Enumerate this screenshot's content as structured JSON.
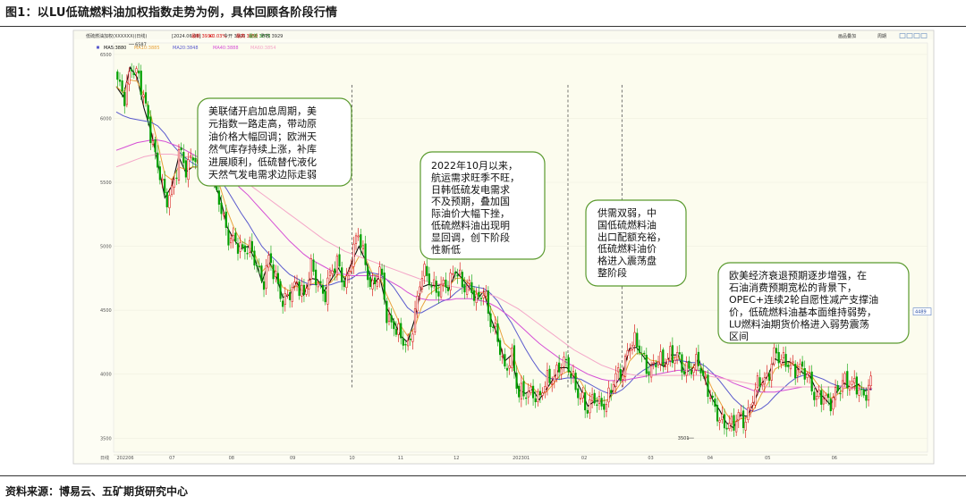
{
  "figure": {
    "caption": "图1：以LU低硫燃料油加权指数走势为例，具体回顾各阶段行情",
    "source": "资料来源：博易云、五矿期货研究中心"
  },
  "chart_toolbar": {
    "instrument": "低硫燃油加权(XXXXXX)(日线)",
    "info_items": [
      {
        "label": "[2024.06.06]",
        "color": "#333333"
      },
      {
        "label": "最新 3930",
        "color": "#d40000"
      },
      {
        "label": "+0.03%",
        "color": "#d40000"
      },
      {
        "label": "今开 3900",
        "color": "#333333"
      },
      {
        "label": "最高 3950",
        "color": "#d40000"
      },
      {
        "label": "最低 3875",
        "color": "#008800"
      },
      {
        "label": "昨收 3929",
        "color": "#333333"
      }
    ],
    "right_buttons": [
      "画品叠加",
      "周期"
    ]
  },
  "ma_legend": [
    {
      "label": "MA5:3880",
      "color": "#111111"
    },
    {
      "label": "MA10:3885",
      "color": "#e8a23c"
    },
    {
      "label": "MA20:3848",
      "color": "#5a5acd"
    },
    {
      "label": "MA40:3888",
      "color": "#d54fd5"
    },
    {
      "label": "MA60:3854",
      "color": "#f4a6c8"
    }
  ],
  "annotations": [
    {
      "id": "a1",
      "lines": [
        "美联储开启加息周期，美",
        "元指数一路走高，带动原",
        "油价格大幅回调；欧洲天",
        "然气库存持续上涨，补库",
        "进展顺利，低硫替代液化",
        "天然气发电需求边际走弱"
      ]
    },
    {
      "id": "a2",
      "lines": [
        "2022年10月以来，",
        "航运需求旺季不旺，",
        "日韩低硫发电需求",
        "不及预期，叠加国",
        "际油价大幅下挫，",
        "低硫燃料油出现明",
        "显回调，创下阶段",
        "性新低"
      ]
    },
    {
      "id": "a3",
      "lines": [
        "供需双弱，中",
        "国低硫燃料油",
        "出口配额充裕，",
        "低硫燃料油价",
        "格进入震荡盘",
        "整阶段"
      ]
    },
    {
      "id": "a4",
      "lines": [
        "欧美经济衰退预期逐步增强，在",
        "石油消费预期宽松的背景下，",
        "OPEC+连续2轮自愿性减产支撑油",
        "价，低硫燃料油基本面维持弱势，",
        "LU燃料油期货价格进入弱势震荡",
        "区间"
      ]
    }
  ],
  "chart_data": {
    "type": "candlestick",
    "period": "日线",
    "y_ticks": [
      3500,
      4000,
      4500,
      5000,
      5500,
      6000,
      6500
    ],
    "ylim": [
      3390,
      6590
    ],
    "x_ticks": [
      "日线",
      "202206",
      "07",
      "08",
      "09",
      "10",
      "11",
      "12",
      "202301",
      "02",
      "03",
      "04",
      "05",
      "06"
    ],
    "x_tick_bars": [
      0,
      10,
      62,
      128,
      196,
      262,
      316,
      378,
      450,
      520,
      594,
      660,
      724,
      798
    ],
    "price_labels": {
      "high": "6587",
      "low": "3501",
      "right": "4489"
    },
    "high_point": {
      "bar": 12,
      "value": 6587
    },
    "low_point": {
      "bar": 636,
      "value": 3501
    },
    "right_marker_value": 4489,
    "period_dividers_at_bar": [
      262,
      502,
      562
    ],
    "up_color": "#d40000",
    "down_color": "#00a000",
    "closes_weekly": [
      6250,
      6150,
      6450,
      6320,
      6080,
      5850,
      5620,
      5300,
      5450,
      5800,
      5560,
      5700,
      5620,
      5820,
      5430,
      5320,
      5100,
      5000,
      4950,
      5050,
      4870,
      4650,
      4960,
      4750,
      4500,
      4650,
      4760,
      4580,
      4820,
      4750,
      4620,
      4780,
      4880,
      4700,
      4920,
      5100,
      4850,
      4650,
      4800,
      4470,
      4400,
      4250,
      4200,
      4490,
      4780,
      4720,
      4690,
      4700,
      4660,
      4850,
      4720,
      4650,
      4550,
      4700,
      4400,
      4250,
      4050,
      4180,
      3800,
      3850,
      3900,
      3780,
      3920,
      4000,
      4080,
      4050,
      3950,
      3850,
      3700,
      3800,
      3790,
      3800,
      3950,
      4020,
      4250,
      4220,
      4120,
      4050,
      4100,
      4050,
      4180,
      4160,
      3980,
      4050,
      4150,
      3900,
      3770,
      3700,
      3600,
      3560,
      3700,
      3660,
      3800,
      3950,
      4000,
      4150,
      4080,
      4120,
      4050,
      4000,
      3980,
      3850,
      3800,
      3740,
      3900,
      3950,
      3880,
      3930,
      3850,
      3900
    ],
    "series": [
      {
        "name": "MA5",
        "color": "#111111",
        "width": 1.1,
        "values": [
          6250,
          6170,
          6400,
          6320,
          6080,
          5900,
          5650,
          5380,
          5470,
          5700,
          5580,
          5620,
          5620,
          5720,
          5500,
          5380,
          5150,
          5050,
          4980,
          5000,
          4900,
          4720,
          4880,
          4780,
          4600,
          4620,
          4720,
          4620,
          4750,
          4740,
          4650,
          4740,
          4830,
          4740,
          4880,
          5000,
          4880,
          4700,
          4760,
          4520,
          4420,
          4300,
          4250,
          4420,
          4680,
          4700,
          4690,
          4700,
          4670,
          4800,
          4740,
          4670,
          4580,
          4650,
          4440,
          4300,
          4100,
          4150,
          3880,
          3850,
          3880,
          3800,
          3880,
          3960,
          4050,
          4050,
          3980,
          3880,
          3750,
          3790,
          3790,
          3800,
          3920,
          4000,
          4200,
          4210,
          4140,
          4070,
          4090,
          4060,
          4150,
          4150,
          4010,
          4040,
          4120,
          3940,
          3800,
          3720,
          3620,
          3580,
          3680,
          3670,
          3780,
          3920,
          3990,
          4120,
          4090,
          4100,
          4060,
          4010,
          3990,
          3870,
          3820,
          3760,
          3870,
          3930,
          3890,
          3920,
          3870,
          3890
        ]
      },
      {
        "name": "MA10",
        "color": "#e8a23c",
        "width": 1.0,
        "values": [
          6250,
          6200,
          6300,
          6290,
          6180,
          6020,
          5800,
          5560,
          5520,
          5620,
          5600,
          5620,
          5620,
          5680,
          5580,
          5460,
          5280,
          5140,
          5040,
          5010,
          4940,
          4800,
          4860,
          4800,
          4680,
          4650,
          4690,
          4650,
          4700,
          4720,
          4690,
          4720,
          4780,
          4760,
          4820,
          4920,
          4900,
          4780,
          4760,
          4620,
          4500,
          4380,
          4300,
          4360,
          4520,
          4620,
          4660,
          4690,
          4690,
          4750,
          4750,
          4700,
          4630,
          4640,
          4520,
          4400,
          4240,
          4190,
          4020,
          3930,
          3900,
          3840,
          3860,
          3920,
          3990,
          4020,
          4000,
          3940,
          3840,
          3810,
          3790,
          3800,
          3870,
          3950,
          4100,
          4160,
          4160,
          4110,
          4100,
          4080,
          4120,
          4140,
          4070,
          4050,
          4090,
          4000,
          3880,
          3790,
          3690,
          3620,
          3650,
          3660,
          3730,
          3840,
          3930,
          4040,
          4070,
          4090,
          4070,
          4040,
          4010,
          3930,
          3870,
          3810,
          3840,
          3890,
          3890,
          3910,
          3890,
          3890
        ]
      },
      {
        "name": "MA20",
        "color": "#5a5acd",
        "width": 1.0,
        "values": [
          6050,
          6020,
          6000,
          5990,
          5980,
          5970,
          5940,
          5880,
          5800,
          5740,
          5690,
          5650,
          5620,
          5600,
          5570,
          5520,
          5440,
          5350,
          5260,
          5180,
          5090,
          5000,
          4940,
          4890,
          4830,
          4780,
          4750,
          4720,
          4700,
          4700,
          4690,
          4700,
          4720,
          4730,
          4750,
          4790,
          4800,
          4790,
          4780,
          4740,
          4680,
          4600,
          4520,
          4480,
          4480,
          4510,
          4540,
          4570,
          4590,
          4640,
          4680,
          4690,
          4680,
          4670,
          4630,
          4570,
          4480,
          4400,
          4300,
          4200,
          4110,
          4030,
          3980,
          3960,
          3960,
          3970,
          3970,
          3960,
          3930,
          3900,
          3870,
          3850,
          3850,
          3880,
          3930,
          3990,
          4030,
          4060,
          4080,
          4090,
          4100,
          4110,
          4100,
          4090,
          4090,
          4060,
          4010,
          3950,
          3880,
          3810,
          3760,
          3720,
          3710,
          3730,
          3770,
          3830,
          3880,
          3930,
          3970,
          3990,
          4000,
          3980,
          3960,
          3930,
          3910,
          3900,
          3890,
          3890,
          3880,
          3880
        ]
      },
      {
        "name": "MA40",
        "color": "#d54fd5",
        "width": 1.0,
        "values": [
          5750,
          5770,
          5790,
          5810,
          5820,
          5830,
          5830,
          5820,
          5800,
          5780,
          5750,
          5720,
          5690,
          5660,
          5630,
          5590,
          5550,
          5500,
          5450,
          5400,
          5340,
          5280,
          5220,
          5160,
          5100,
          5040,
          4990,
          4940,
          4900,
          4870,
          4840,
          4810,
          4790,
          4780,
          4770,
          4770,
          4770,
          4770,
          4760,
          4740,
          4710,
          4680,
          4640,
          4610,
          4590,
          4580,
          4580,
          4580,
          4580,
          4590,
          4590,
          4590,
          4580,
          4570,
          4550,
          4520,
          4480,
          4440,
          4390,
          4340,
          4290,
          4240,
          4200,
          4160,
          4120,
          4090,
          4060,
          4030,
          4000,
          3980,
          3960,
          3950,
          3950,
          3950,
          3960,
          3970,
          3980,
          3990,
          4000,
          4010,
          4020,
          4030,
          4030,
          4030,
          4030,
          4020,
          4000,
          3980,
          3960,
          3930,
          3910,
          3890,
          3870,
          3860,
          3860,
          3860,
          3870,
          3880,
          3890,
          3900,
          3900,
          3900,
          3900,
          3900,
          3900,
          3900,
          3890,
          3890,
          3890,
          3890
        ]
      },
      {
        "name": "MA60",
        "color": "#f4a6c8",
        "width": 1.0,
        "values": [
          5620,
          5640,
          5660,
          5680,
          5700,
          5710,
          5720,
          5720,
          5720,
          5710,
          5700,
          5690,
          5680,
          5660,
          5640,
          5620,
          5590,
          5560,
          5530,
          5490,
          5450,
          5410,
          5370,
          5330,
          5290,
          5250,
          5210,
          5170,
          5130,
          5090,
          5050,
          5020,
          4990,
          4960,
          4940,
          4920,
          4900,
          4880,
          4860,
          4840,
          4820,
          4800,
          4780,
          4760,
          4740,
          4720,
          4710,
          4700,
          4690,
          4680,
          4670,
          4660,
          4650,
          4640,
          4620,
          4600,
          4570,
          4540,
          4510,
          4470,
          4430,
          4390,
          4350,
          4310,
          4270,
          4230,
          4190,
          4160,
          4130,
          4100,
          4070,
          4050,
          4030,
          4010,
          4000,
          3990,
          3990,
          3990,
          3990,
          3990,
          3990,
          3990,
          3990,
          3990,
          3990,
          3990,
          3980,
          3970,
          3960,
          3950,
          3940,
          3930,
          3920,
          3910,
          3900,
          3900,
          3900,
          3900,
          3900,
          3900,
          3900,
          3900,
          3900,
          3900,
          3900,
          3900,
          3890,
          3890,
          3890,
          3890
        ]
      }
    ]
  }
}
